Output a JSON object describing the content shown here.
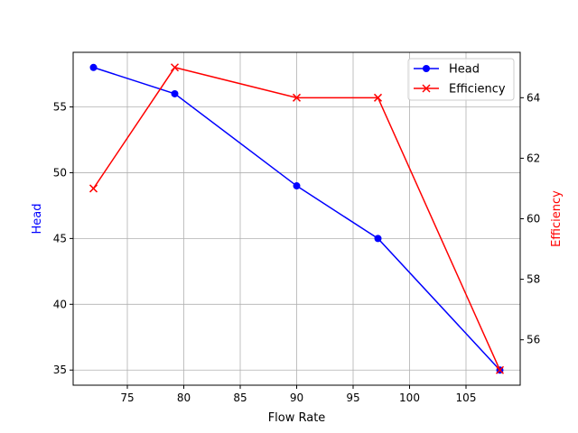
{
  "chart_data": {
    "type": "line",
    "title": "",
    "xlabel": "Flow Rate",
    "ylabel_left": "Head",
    "ylabel_right": "Efficiency",
    "x": [
      72,
      79.2,
      90,
      97.2,
      108
    ],
    "xlim": [
      70.2,
      109.8
    ],
    "ylim_left": [
      33.85,
      59.15
    ],
    "ylim_right": [
      54.5,
      65.5
    ],
    "xticks": [
      75,
      80,
      85,
      90,
      95,
      100,
      105
    ],
    "yticks_left": [
      35,
      40,
      45,
      50,
      55
    ],
    "yticks_right": [
      56,
      58,
      60,
      62,
      64
    ],
    "grid": true,
    "legend_placement": "top-right",
    "series": [
      {
        "name": "Head",
        "axis": "left",
        "values": [
          58,
          56,
          49,
          45,
          35
        ],
        "color": "#0000ff",
        "marker": "circle"
      },
      {
        "name": "Efficiency",
        "axis": "right",
        "values": [
          61,
          65,
          64,
          64,
          55
        ],
        "color": "#ff0000",
        "marker": "x"
      }
    ]
  }
}
